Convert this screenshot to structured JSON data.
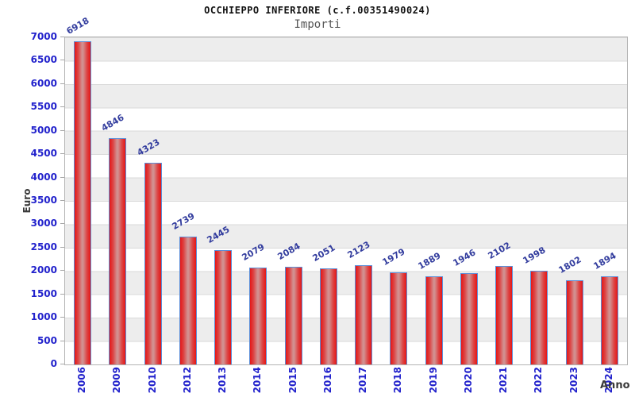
{
  "chart_data": {
    "type": "bar",
    "title": "OCCHIEPPO INFERIORE (c.f.00351490024)",
    "subtitle": "Importi",
    "xlabel": "Anno",
    "ylabel": "Euro",
    "categories": [
      "2006",
      "2009",
      "2010",
      "2012",
      "2013",
      "2014",
      "2015",
      "2016",
      "2017",
      "2018",
      "2019",
      "2020",
      "2021",
      "2022",
      "2023",
      "2024"
    ],
    "values": [
      6918,
      4846,
      4323,
      2739,
      2445,
      2079,
      2084,
      2051,
      2123,
      1979,
      1889,
      1946,
      2102,
      1998,
      1802,
      1894
    ],
    "ylim": [
      0,
      7000
    ],
    "y_ticks": [
      0,
      500,
      1000,
      1500,
      2000,
      2500,
      3000,
      3500,
      4000,
      4500,
      5000,
      5500,
      6000,
      6500,
      7000
    ],
    "grid": "horizontal alternating bands every 500, light gridlines",
    "legend": "none",
    "colors": {
      "bar_edge": "#e51717",
      "bar_center": "#d28f8f",
      "bar_border": "#5b8ed8",
      "tick_label": "#2222cc",
      "value_label": "#333d9e",
      "band_gray": "#ededed",
      "band_white": "#ffffff",
      "axis_title": "#3a3a3a",
      "title": "#111111",
      "subtitle": "#555555"
    }
  }
}
